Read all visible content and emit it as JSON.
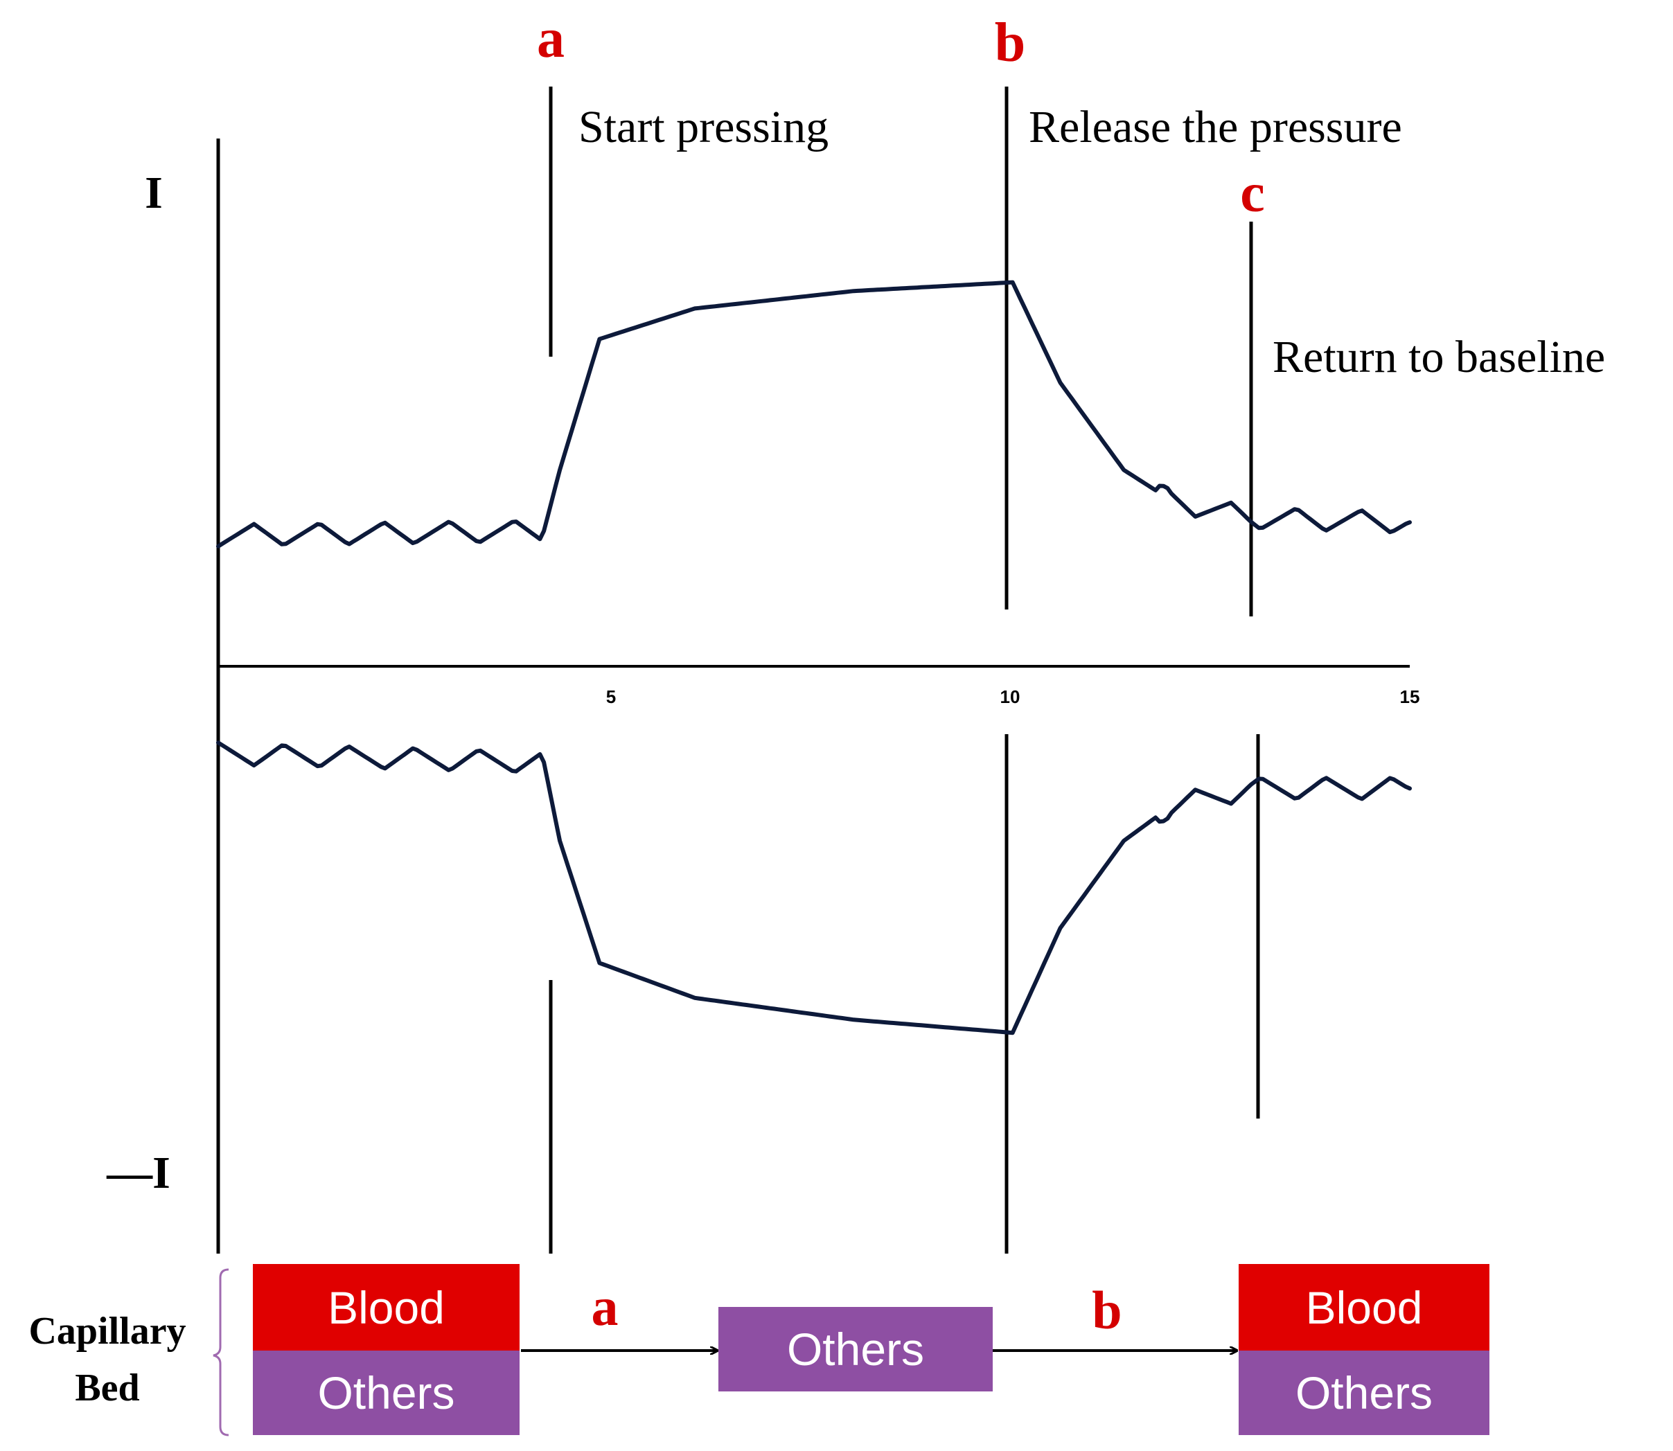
{
  "y_axis": {
    "top_label": "I",
    "bottom_label": "—I"
  },
  "x_axis": {
    "ticks": [
      "5",
      "10",
      "15"
    ]
  },
  "markers": {
    "a": {
      "letter": "a",
      "text": "Start pressing"
    },
    "b": {
      "letter": "b",
      "text": "Release the pressure"
    },
    "c": {
      "letter": "c",
      "text": "Return to baseline"
    }
  },
  "capillary_bed": {
    "label_line1": "Capillary",
    "label_line2": "Bed",
    "state1": {
      "top": "Blood",
      "bottom": "Others"
    },
    "arrow1_label": "a",
    "state2": {
      "only": "Others"
    },
    "arrow2_label": "b",
    "state3": {
      "top": "Blood",
      "bottom": "Others"
    }
  },
  "colors": {
    "trace": "#0d1a3a",
    "accent_red": "#d40000",
    "blood": "#e00000",
    "others": "#8e4fa3"
  },
  "chart_data": {
    "type": "line",
    "x_ticks": [
      5,
      10,
      15
    ],
    "events": {
      "a_start_pressing": 4.2,
      "b_release": 10,
      "c_baseline": 13
    },
    "series": [
      {
        "points": [
          [
            0,
            0.3
          ],
          [
            4.1,
            0.31
          ],
          [
            4.3,
            0.45
          ],
          [
            4.8,
            0.75
          ],
          [
            6,
            0.82
          ],
          [
            8,
            0.86
          ],
          [
            10,
            0.88
          ],
          [
            10.6,
            0.65
          ],
          [
            11.4,
            0.45
          ],
          [
            12,
            0.38
          ],
          [
            13,
            0.34
          ],
          [
            15,
            0.33
          ]
        ]
      },
      {
        "points": [
          [
            0,
            -0.2
          ],
          [
            4.1,
            -0.22
          ],
          [
            4.3,
            -0.4
          ],
          [
            4.8,
            -0.68
          ],
          [
            6,
            -0.76
          ],
          [
            8,
            -0.81
          ],
          [
            10,
            -0.84
          ],
          [
            10.6,
            -0.6
          ],
          [
            11.4,
            -0.4
          ],
          [
            12,
            -0.32
          ],
          [
            13,
            -0.28
          ],
          [
            15,
            -0.28
          ]
        ]
      }
    ]
  }
}
